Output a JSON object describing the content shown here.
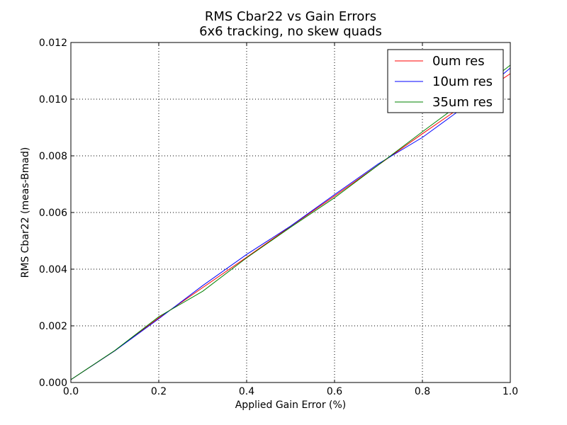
{
  "chart_data": {
    "type": "line",
    "title": "RMS Cbar22 vs Gain Errors",
    "subtitle": "6x6 tracking, no skew quads",
    "xlabel": "Applied Gain Error (%)",
    "ylabel": "RMS Cbar22 (meas-Bmad)",
    "xlim": [
      0.0,
      1.0
    ],
    "ylim": [
      0.0,
      0.012
    ],
    "xticks": [
      "0.0",
      "0.2",
      "0.4",
      "0.6",
      "0.8",
      "1.0"
    ],
    "yticks": [
      "0.000",
      "0.002",
      "0.004",
      "0.006",
      "0.008",
      "0.010",
      "0.012"
    ],
    "grid": true,
    "legend_position": "top-right",
    "x": [
      0.0,
      0.1,
      0.2,
      0.3,
      0.4,
      0.5,
      0.6,
      0.7,
      0.8,
      0.9,
      1.0
    ],
    "series": [
      {
        "name": "0um res",
        "color": "#ff0000",
        "values": [
          0.0001,
          0.00112,
          0.00228,
          0.00335,
          0.00442,
          0.00551,
          0.00658,
          0.00768,
          0.00878,
          0.00985,
          0.0109
        ]
      },
      {
        "name": "10um res",
        "color": "#0000ff",
        "values": [
          0.0001,
          0.00112,
          0.00225,
          0.00342,
          0.00452,
          0.00552,
          0.00663,
          0.00772,
          0.00865,
          0.00978,
          0.0111
        ]
      },
      {
        "name": "35um res",
        "color": "#008000",
        "values": [
          0.0001,
          0.00113,
          0.00232,
          0.00322,
          0.0044,
          0.00548,
          0.00652,
          0.00768,
          0.00885,
          0.01,
          0.0112
        ]
      }
    ]
  }
}
